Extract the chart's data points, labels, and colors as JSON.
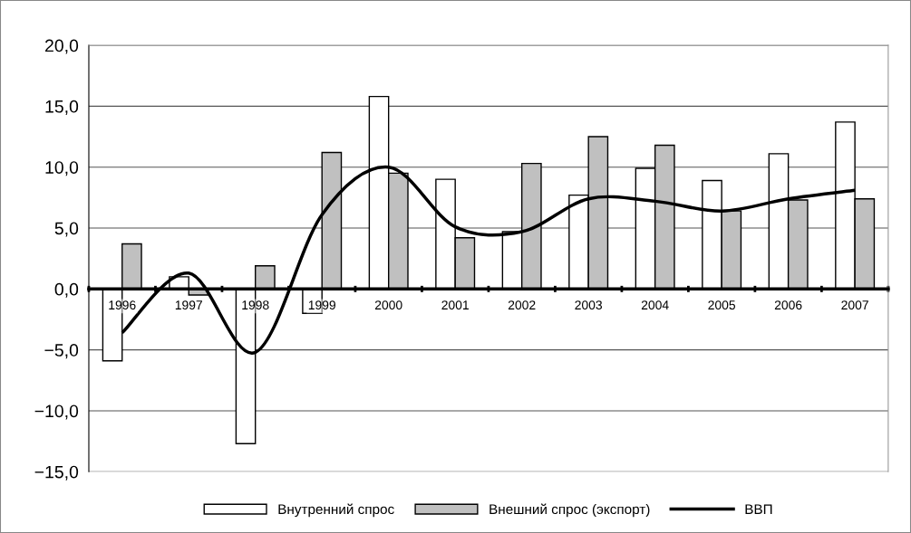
{
  "chart_data": {
    "type": "bar",
    "categories": [
      "1996",
      "1997",
      "1998",
      "1999",
      "2000",
      "2001",
      "2002",
      "2003",
      "2004",
      "2005",
      "2006",
      "2007"
    ],
    "series": [
      {
        "name": "Внутренний спрос",
        "color": "#ffffff",
        "values": [
          -5.9,
          1.0,
          -12.7,
          -2.0,
          15.8,
          9.0,
          4.7,
          7.7,
          9.9,
          8.9,
          11.1,
          13.7
        ]
      },
      {
        "name": "Внешний спрос (экспорт)",
        "color": "#c0c0c0",
        "values": [
          3.7,
          -0.5,
          1.9,
          11.2,
          9.5,
          4.2,
          10.3,
          12.5,
          11.8,
          6.4,
          7.3,
          7.4
        ]
      },
      {
        "name": "ВВП",
        "type": "line",
        "color": "#000000",
        "values": [
          -3.6,
          1.3,
          -5.2,
          6.1,
          10.0,
          5.1,
          4.7,
          7.4,
          7.2,
          6.4,
          7.4,
          8.1
        ]
      }
    ],
    "ylim": [
      -15,
      20
    ],
    "yticks": [
      {
        "value": -15,
        "label": "−15,0"
      },
      {
        "value": -10,
        "label": "−10,0"
      },
      {
        "value": -5,
        "label": "−5,0"
      },
      {
        "value": 0,
        "label": "0,0"
      },
      {
        "value": 5,
        "label": "5,0"
      },
      {
        "value": 10,
        "label": "10,0"
      },
      {
        "value": 15,
        "label": "15,0"
      },
      {
        "value": 20,
        "label": "20,0"
      }
    ],
    "grid": "y",
    "legend": "bottom",
    "marker": "none",
    "line_style": "solid"
  }
}
